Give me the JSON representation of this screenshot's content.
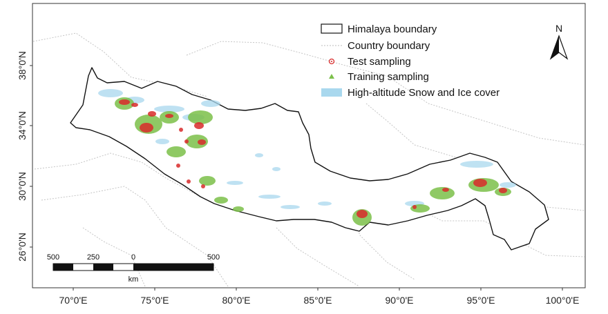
{
  "map": {
    "x_axis_labels": [
      "70°0'E",
      "75°0'E",
      "80°0'E",
      "85°0'E",
      "90°0'E",
      "95°0'E",
      "100°0'E"
    ],
    "y_axis_labels": [
      "38°0'N",
      "34°0'N",
      "30°0'N",
      "26°0'N"
    ],
    "north_arrow_label": "N",
    "legend": [
      {
        "label": "Himalaya boundary",
        "symbol": "box-outline"
      },
      {
        "label": "Country boundary",
        "symbol": "dotted-line"
      },
      {
        "label": "Test sampling",
        "symbol": "red-circle"
      },
      {
        "label": "Training sampling",
        "symbol": "green-triangle"
      },
      {
        "label": "High-altitude Snow and Ice cover",
        "symbol": "blue-fill"
      }
    ],
    "scale_bar": {
      "labels": [
        "500",
        "250",
        "0",
        "500"
      ],
      "unit": "km"
    },
    "colors": {
      "boundary": "#111111",
      "country_boundary": "#bbbbbb",
      "test_sampling": "#d92b2b",
      "training_sampling": "#7cc04a",
      "snow_ice": "#a9d8ee"
    }
  }
}
